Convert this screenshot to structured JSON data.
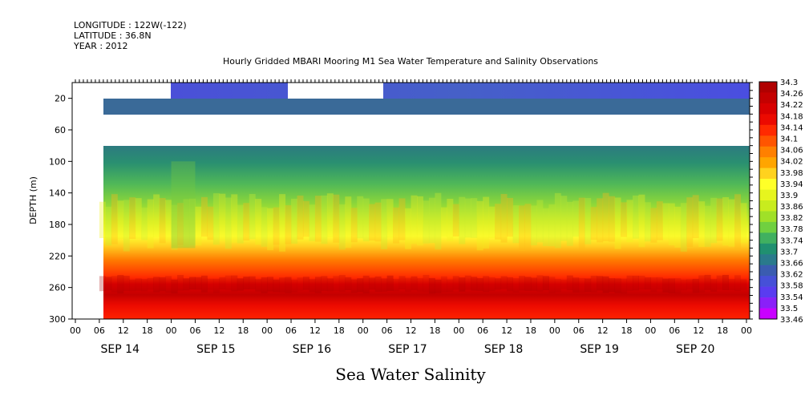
{
  "header": {
    "longitude": "LONGITUDE : 122W(-122)",
    "latitude": "LATITUDE : 36.8N",
    "year": "YEAR : 2012"
  },
  "chart_data": {
    "type": "heatmap",
    "title": "Hourly Gridded MBARI Mooring M1 Sea Water Temperature and Salinity Observations",
    "xlabel": "Sea Water Salinity",
    "ylabel": "DEPTH (m)",
    "ylim": [
      300,
      0
    ],
    "y_ticks": [
      20,
      60,
      100,
      140,
      180,
      220,
      260,
      300
    ],
    "x_range_hours": [
      0,
      168
    ],
    "x_hour_ticks": [
      "00",
      "06",
      "12",
      "18",
      "00",
      "06",
      "12",
      "18",
      "00",
      "06",
      "12",
      "18",
      "00",
      "06",
      "12",
      "18",
      "00",
      "06",
      "12",
      "18",
      "00",
      "06",
      "12",
      "18",
      "00",
      "06",
      "12",
      "18",
      "00"
    ],
    "x_day_labels": [
      "SEP 14",
      "SEP 15",
      "SEP 16",
      "SEP 17",
      "SEP 18",
      "SEP 19",
      "SEP 20"
    ],
    "colorbar_levels": [
      "34.3",
      "34.26",
      "34.22",
      "34.18",
      "34.14",
      "34.1",
      "34.06",
      "34.02",
      "33.98",
      "33.94",
      "33.9",
      "33.86",
      "33.82",
      "33.78",
      "33.74",
      "33.7",
      "33.66",
      "33.62",
      "33.58",
      "33.54",
      "33.5",
      "33.46"
    ],
    "colorbar_colors": [
      "#b00000",
      "#c40000",
      "#d80000",
      "#ec0a00",
      "#ff2a00",
      "#ff5500",
      "#ff8000",
      "#ffa500",
      "#ffd21e",
      "#ffff28",
      "#e6f51e",
      "#c8ec1e",
      "#a0e028",
      "#70d040",
      "#40b060",
      "#209070",
      "#2a7a8c",
      "#3a5cb0",
      "#4650d8",
      "#5a3cf0",
      "#8a20f8",
      "#c800ff"
    ],
    "depth_bands": [
      {
        "depth_top": 0,
        "depth_bottom": 20,
        "value_range": [
          33.54,
          33.62
        ]
      },
      {
        "depth_top": 20,
        "depth_bottom": 40,
        "value_range": [
          33.62,
          33.66
        ]
      },
      {
        "depth_top": 80,
        "depth_bottom": 100,
        "value_range": [
          33.66,
          33.7
        ]
      },
      {
        "depth_top": 100,
        "depth_bottom": 140,
        "value_range": [
          33.74,
          33.9
        ]
      },
      {
        "depth_top": 140,
        "depth_bottom": 200,
        "value_range": [
          33.94,
          34.1
        ]
      },
      {
        "depth_top": 200,
        "depth_bottom": 240,
        "value_range": [
          34.1,
          34.18
        ]
      },
      {
        "depth_top": 240,
        "depth_bottom": 270,
        "value_range": [
          34.22,
          34.3
        ]
      },
      {
        "depth_top": 270,
        "depth_bottom": 300,
        "value_range": [
          34.18,
          34.22
        ]
      }
    ],
    "missing_data": [
      {
        "depth_range": [
          0,
          40
        ],
        "time_hours": [
          0,
          6
        ]
      },
      {
        "depth_range": [
          0,
          20
        ],
        "time_hours": [
          6,
          20
        ]
      },
      {
        "depth_range": [
          0,
          20
        ],
        "time_hours": [
          45,
          65
        ]
      },
      {
        "depth_range": [
          40,
          80
        ],
        "time_hours": [
          0,
          168
        ]
      },
      {
        "depth_range": [
          80,
          300
        ],
        "time_hours": [
          0,
          6
        ]
      }
    ]
  }
}
